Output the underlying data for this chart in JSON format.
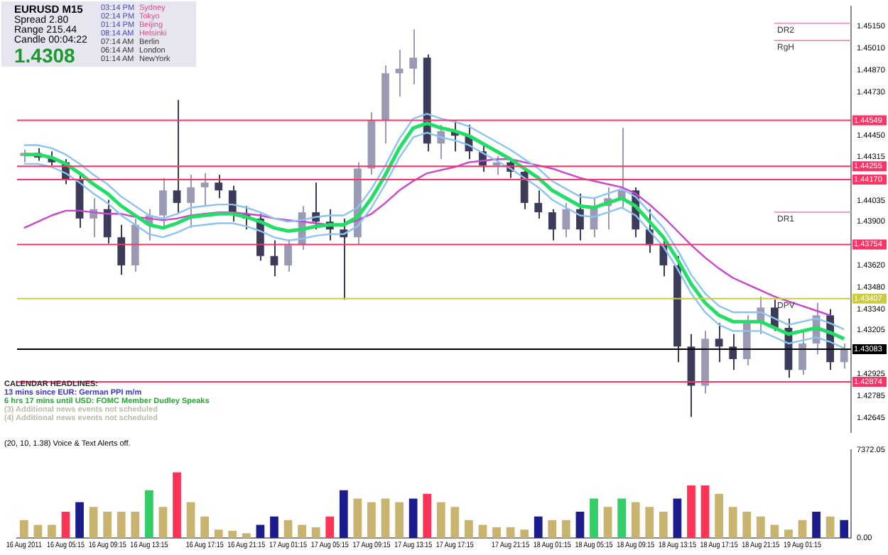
{
  "chart_data": [
    {
      "type": "candlestick",
      "colors": [
        "#9a9ab4",
        "#3c3c5a",
        "#3c3c5a",
        "#3c3c5a",
        "#3c3c5a",
        "#9a9ab4",
        "#3c3c5a",
        "#3c3c5a",
        "#9a9ab4",
        "#9a9ab4",
        "#9a9ab4",
        "#3c3c5a",
        "#9a9ab4",
        "#9a9ab4",
        "#3c3c5a",
        "#3c3c5a",
        "#3c3c5a",
        "#3c3c5a",
        "#3c3c5a",
        "#9a9ab4",
        "#9a9ab4",
        "#3c3c5a",
        "#3c3c5a",
        "#3c3c5a",
        "#9a9ab4",
        "#9a9ab4",
        "#9a9ab4",
        "#9a9ab4",
        "#9a9ab4",
        "#3c3c5a",
        "#9a9ab4",
        "#3c3c5a",
        "#3c3c5a",
        "#3c3c5a",
        "#9a9ab4",
        "#3c3c5a",
        "#3c3c5a",
        "#3c3c5a",
        "#3c3c5a",
        "#9a9ab4",
        "#3c3c5a",
        "#9a9ab4",
        "#9a9ab4",
        "#9a9ab4",
        "#3c3c5a",
        "#3c3c5a",
        "#3c3c5a",
        "#3c3c5a",
        "#3c3c5a",
        "#9a9ab4",
        "#3c3c5a",
        "#3c3c5a",
        "#9a9ab4",
        "#9a9ab4",
        "#3c3c5a",
        "#3c3c5a",
        "#9a9ab4",
        "#9a9ab4",
        "#3c3c5a",
        "#9a9ab4"
      ],
      "grid": false,
      "legend": false,
      "tick_labels": "y",
      "categories": [
        null,
        null,
        null,
        null,
        null,
        null,
        null,
        null,
        null,
        null,
        null,
        null,
        null,
        null,
        null,
        null,
        null,
        null,
        null,
        null,
        null,
        null,
        null,
        null,
        null,
        null,
        null,
        null,
        null,
        null,
        null,
        null,
        null,
        null,
        null,
        null,
        null,
        null,
        null,
        null,
        null,
        null,
        null,
        null,
        null,
        null,
        null,
        null,
        null,
        null,
        null,
        null,
        null,
        null,
        null,
        null,
        null,
        null,
        null,
        null
      ],
      "ohlc": [
        [
          1.4432,
          1.4436,
          1.4428,
          1.4434
        ],
        [
          1.4434,
          1.4437,
          1.4429,
          1.4431
        ],
        [
          1.4431,
          1.4435,
          1.4426,
          1.4428
        ],
        [
          1.4428,
          1.443,
          1.4414,
          1.4417
        ],
        [
          1.4417,
          1.442,
          1.4386,
          1.4392
        ],
        [
          1.4392,
          1.4405,
          1.438,
          1.4398
        ],
        [
          1.4398,
          1.4404,
          1.4376,
          1.438
        ],
        [
          1.438,
          1.4388,
          1.4356,
          1.4362
        ],
        [
          1.4362,
          1.4392,
          1.4358,
          1.4388
        ],
        [
          1.4388,
          1.4398,
          1.4378,
          1.4394
        ],
        [
          1.4394,
          1.4418,
          1.4385,
          1.441
        ],
        [
          1.441,
          1.4468,
          1.4395,
          1.4402
        ],
        [
          1.4402,
          1.442,
          1.4386,
          1.4412
        ],
        [
          1.4412,
          1.4421,
          1.44,
          1.4415
        ],
        [
          1.4415,
          1.442,
          1.4405,
          1.441
        ],
        [
          1.441,
          1.4413,
          1.439,
          1.4395
        ],
        [
          1.4395,
          1.44,
          1.4385,
          1.4392
        ],
        [
          1.4392,
          1.4395,
          1.4365,
          1.4368
        ],
        [
          1.4368,
          1.4378,
          1.4355,
          1.4362
        ],
        [
          1.4362,
          1.4378,
          1.4358,
          1.4375
        ],
        [
          1.4375,
          1.44,
          1.4372,
          1.4396
        ],
        [
          1.4396,
          1.4415,
          1.4385,
          1.439
        ],
        [
          1.439,
          1.4398,
          1.4378,
          1.4385
        ],
        [
          1.4385,
          1.4392,
          1.434,
          1.438
        ],
        [
          1.438,
          1.4428,
          1.4375,
          1.4424
        ],
        [
          1.4424,
          1.446,
          1.442,
          1.4455
        ],
        [
          1.4455,
          1.449,
          1.444,
          1.4485
        ],
        [
          1.4485,
          1.45,
          1.447,
          1.4488
        ],
        [
          1.4488,
          1.4513,
          1.4478,
          1.4495
        ],
        [
          1.4495,
          1.4497,
          1.4435,
          1.444
        ],
        [
          1.444,
          1.4452,
          1.443,
          1.4448
        ],
        [
          1.4448,
          1.4455,
          1.4435,
          1.4445
        ],
        [
          1.4445,
          1.4452,
          1.443,
          1.4435
        ],
        [
          1.4435,
          1.444,
          1.4422,
          1.4426
        ],
        [
          1.4426,
          1.4432,
          1.442,
          1.4428
        ],
        [
          1.4428,
          1.443,
          1.4418,
          1.4422
        ],
        [
          1.4422,
          1.4424,
          1.4398,
          1.4402
        ],
        [
          1.4402,
          1.441,
          1.4392,
          1.4396
        ],
        [
          1.4396,
          1.4398,
          1.4378,
          1.4385
        ],
        [
          1.4385,
          1.4402,
          1.438,
          1.4398
        ],
        [
          1.4398,
          1.4408,
          1.4378,
          1.4385
        ],
        [
          1.4385,
          1.4405,
          1.438,
          1.44
        ],
        [
          1.44,
          1.4412,
          1.4385,
          1.4405
        ],
        [
          1.4405,
          1.445,
          1.4398,
          1.441
        ],
        [
          1.441,
          1.4412,
          1.438,
          1.4385
        ],
        [
          1.4385,
          1.4398,
          1.437,
          1.4375
        ],
        [
          1.4375,
          1.438,
          1.4355,
          1.4362
        ],
        [
          1.4362,
          1.4368,
          1.43,
          1.431
        ],
        [
          1.431,
          1.4318,
          1.4265,
          1.4285
        ],
        [
          1.4285,
          1.432,
          1.428,
          1.4315
        ],
        [
          1.4315,
          1.4325,
          1.43,
          1.431
        ],
        [
          1.431,
          1.4318,
          1.4295,
          1.4302
        ],
        [
          1.4302,
          1.433,
          1.4298,
          1.4325
        ],
        [
          1.4325,
          1.4342,
          1.4318,
          1.4335
        ],
        [
          1.4335,
          1.434,
          1.432,
          1.4322
        ],
        [
          1.4322,
          1.4328,
          1.429,
          1.4295
        ],
        [
          1.4295,
          1.432,
          1.4292,
          1.4312
        ],
        [
          1.4312,
          1.4338,
          1.4305,
          1.433
        ],
        [
          1.433,
          1.4334,
          1.4295,
          1.43
        ],
        [
          1.43,
          1.4312,
          1.4296,
          1.4308
        ]
      ],
      "series": [
        {
          "type": "line",
          "color": "#22dd66",
          "values": [
            1.4433,
            1.4433,
            1.4431,
            1.4427,
            1.4421,
            1.4414,
            1.4408,
            1.44,
            1.4394,
            1.4388,
            1.4386,
            1.4389,
            1.4393,
            1.4394,
            1.4395,
            1.4395,
            1.4393,
            1.439,
            1.4386,
            1.4384,
            1.4385,
            1.4387,
            1.4388,
            1.4388,
            1.4393,
            1.4405,
            1.442,
            1.4437,
            1.445,
            1.4453,
            1.445,
            1.4448,
            1.4445,
            1.444,
            1.4435,
            1.443,
            1.4424,
            1.4418,
            1.441,
            1.4405,
            1.44,
            1.4399,
            1.4402,
            1.4405,
            1.44,
            1.439,
            1.438,
            1.4366,
            1.435,
            1.4338,
            1.433,
            1.4326,
            1.4326,
            1.4326,
            1.4322,
            1.4318,
            1.432,
            1.4322,
            1.4319,
            1.4315
          ]
        },
        {
          "type": "line",
          "color": "#8cc4f0",
          "values": [
            1.4439,
            1.4439,
            1.4437,
            1.4433,
            1.4427,
            1.442,
            1.4414,
            1.4406,
            1.44,
            1.4394,
            1.4392,
            1.4395,
            1.4399,
            1.44,
            1.4401,
            1.4401,
            1.4399,
            1.4396,
            1.4392,
            1.439,
            1.4391,
            1.4393,
            1.4394,
            1.4394,
            1.4399,
            1.4411,
            1.4426,
            1.4443,
            1.4456,
            1.4459,
            1.4456,
            1.4454,
            1.4451,
            1.4446,
            1.4441,
            1.4436,
            1.443,
            1.4424,
            1.4416,
            1.4411,
            1.4406,
            1.4405,
            1.4408,
            1.4411,
            1.4406,
            1.4396,
            1.4386,
            1.4372,
            1.4356,
            1.4344,
            1.4336,
            1.4332,
            1.4332,
            1.4332,
            1.4328,
            1.4324,
            1.4326,
            1.4328,
            1.4325,
            1.4321
          ]
        },
        {
          "type": "line",
          "color": "#8cc4f0",
          "values": [
            1.4427,
            1.4427,
            1.4425,
            1.4421,
            1.4415,
            1.4408,
            1.4402,
            1.4394,
            1.4388,
            1.4382,
            1.438,
            1.4383,
            1.4387,
            1.4388,
            1.4389,
            1.4389,
            1.4387,
            1.4384,
            1.438,
            1.4378,
            1.4379,
            1.4381,
            1.4382,
            1.4382,
            1.4387,
            1.4399,
            1.4414,
            1.4431,
            1.4444,
            1.4447,
            1.4444,
            1.4442,
            1.4439,
            1.4434,
            1.4429,
            1.4424,
            1.4418,
            1.4412,
            1.4404,
            1.4399,
            1.4394,
            1.4393,
            1.4396,
            1.4399,
            1.4394,
            1.4384,
            1.4374,
            1.436,
            1.4344,
            1.4332,
            1.4324,
            1.432,
            1.432,
            1.432,
            1.4316,
            1.4312,
            1.4314,
            1.4316,
            1.4313,
            1.4309
          ]
        },
        {
          "type": "line",
          "color": "#cc44cc",
          "values": [
            1.4386,
            1.439,
            1.4394,
            1.4397,
            1.4397,
            1.4396,
            1.4395,
            1.4395,
            1.4393,
            1.4392,
            1.4391,
            1.4392,
            1.4394,
            1.4395,
            1.4396,
            1.4396,
            1.4395,
            1.4394,
            1.4392,
            1.4391,
            1.439,
            1.4389,
            1.4388,
            1.4388,
            1.4391,
            1.4395,
            1.4402,
            1.441,
            1.4416,
            1.4421,
            1.4423,
            1.4425,
            1.4428,
            1.4429,
            1.443,
            1.443,
            1.4428,
            1.4426,
            1.4424,
            1.4421,
            1.4418,
            1.4416,
            1.4414,
            1.4412,
            1.4408,
            1.4401,
            1.4393,
            1.4384,
            1.4375,
            1.4367,
            1.436,
            1.4354,
            1.435,
            1.4346,
            1.4342,
            1.4339,
            1.4336,
            1.4333,
            1.433,
            null
          ]
        }
      ],
      "ylim": [
        1.4255,
        1.4528
      ],
      "yticks": [
        {
          "value": 1.4515,
          "label": "1.45150"
        },
        {
          "value": 1.4501,
          "label": "1.45010"
        },
        {
          "value": 1.4487,
          "label": "1.44870"
        },
        {
          "value": 1.4473,
          "label": "1.44730"
        },
        {
          "value": 1.4445,
          "label": "1.44450"
        },
        {
          "value": 1.44315,
          "label": "1.44315"
        },
        {
          "value": 1.44035,
          "label": "1.44035"
        },
        {
          "value": 1.439,
          "label": "1.43900"
        },
        {
          "value": 1.4362,
          "label": "1.43620"
        },
        {
          "value": 1.4348,
          "label": "1.43480"
        },
        {
          "value": 1.4334,
          "label": "1.43340"
        },
        {
          "value": 1.43205,
          "label": "1.43205"
        },
        {
          "value": 1.42925,
          "label": "1.42925"
        },
        {
          "value": 1.42785,
          "label": "1.42785"
        },
        {
          "value": 1.42645,
          "label": "1.42645"
        }
      ],
      "ref_lines": [
        {
          "axis": "y",
          "value": 1.44549,
          "label": "1.44549",
          "color": "#ff3366"
        },
        {
          "axis": "y",
          "value": 1.44255,
          "label": "1.44255",
          "color": "#ff3366"
        },
        {
          "axis": "y",
          "value": 1.4417,
          "label": "1.44170",
          "color": "#ff3366"
        },
        {
          "axis": "y",
          "value": 1.43754,
          "label": "1.43754",
          "color": "#ff3366"
        },
        {
          "axis": "y",
          "value": 1.43407,
          "label": "1.43407",
          "color": "#cccc44"
        },
        {
          "axis": "y",
          "value": 1.43083,
          "label": "1.43083",
          "color": "#000000"
        },
        {
          "axis": "y",
          "value": 1.42874,
          "label": "1.42874",
          "color": "#ff3366"
        },
        {
          "axis": "y",
          "value": 1.4517,
          "label": "DR2"
        },
        {
          "axis": "y",
          "value": 1.4506,
          "label": "RgH"
        },
        {
          "axis": "y",
          "value": 1.4396,
          "label": "DR1"
        }
      ],
      "annotations": [
        "EURUSD  M15",
        "Spread  2.80",
        "Range  215.44",
        "Candle  00:04:22",
        "1.4308",
        "03:14 PM",
        "02:14 PM",
        "01:14 PM",
        "08:14 AM",
        "07:14 AM",
        "06:14 AM",
        "01:14 AM",
        "Sydney",
        "Tokyo",
        "Beijing",
        "Helsinki",
        "Berlin",
        "London",
        "NewYork",
        "CALENDAR HEADLINES:",
        "13 mins since EUR: German PPI m/m",
        "6 hrs 17 mins until USD: FOMC Member Dudley Speaks",
        "(3)  Additional news events not scheduled",
        "(4)  Additional news events not scheduled",
        {
          "text": "DPV",
          "y": 1.43407
        }
      ]
    },
    {
      "type": "bar",
      "grid": false,
      "legend": false,
      "categories": [
        "16 Aug 2011",
        null,
        null,
        "16 Aug 05:15",
        null,
        null,
        "16 Aug 09:15",
        null,
        null,
        "16 Aug 13:15",
        null,
        null,
        null,
        "16 Aug 17:15",
        null,
        null,
        "16 Aug 21:15",
        null,
        null,
        "17 Aug 01:15",
        null,
        null,
        "17 Aug 05:15",
        null,
        null,
        "17 Aug 09:15",
        null,
        null,
        "17 Aug 13:15",
        null,
        null,
        "17 Aug 17:15",
        null,
        null,
        null,
        "17 Aug 21:15",
        null,
        null,
        "18 Aug 01:15",
        null,
        null,
        "18 Aug 05:15",
        null,
        null,
        "18 Aug 09:15",
        null,
        null,
        "18 Aug 13:15",
        null,
        null,
        "18 Aug 17:15",
        null,
        null,
        "18 Aug 21:15",
        null,
        null,
        "19 Aug 01:15",
        null,
        null,
        null
      ],
      "values": [
        1500,
        1100,
        1100,
        2200,
        3000,
        2600,
        2200,
        2200,
        2200,
        4000,
        2600,
        5500,
        3000,
        1800,
        700,
        600,
        400,
        1100,
        1800,
        1500,
        1100,
        900,
        1800,
        4000,
        3300,
        3000,
        3300,
        3000,
        3300,
        3700,
        3000,
        2600,
        1500,
        1100,
        900,
        900,
        700,
        1800,
        1500,
        1500,
        2200,
        3300,
        2600,
        3300,
        3000,
        2600,
        2200,
        3300,
        4400,
        4400,
        3700,
        2600,
        2200,
        1800,
        1100,
        700,
        1500,
        2200,
        1800,
        1500
      ],
      "colors": [
        "#c8b46e",
        "#c8b46e",
        "#c8b46e",
        "#ff3355",
        "#1c1c8c",
        "#c8b46e",
        "#c8b46e",
        "#c8b46e",
        "#c8b46e",
        "#33cc66",
        "#c8b46e",
        "#ff3355",
        "#c8b46e",
        "#c8b46e",
        "#c8b46e",
        "#c8b46e",
        "#c8b46e",
        "#1c1c8c",
        "#1c1c8c",
        "#c8b46e",
        "#c8b46e",
        "#c8b46e",
        "#ff3355",
        "#1c1c8c",
        "#c8b46e",
        "#c8b46e",
        "#c8b46e",
        "#c8b46e",
        "#1c1c8c",
        "#ff3355",
        "#c8b46e",
        "#c8b46e",
        "#c8b46e",
        "#c8b46e",
        "#c8b46e",
        "#c8b46e",
        "#c8b46e",
        "#1c1c8c",
        "#c8b46e",
        "#c8b46e",
        "#1c1c8c",
        "#33cc66",
        "#c8b46e",
        "#33cc66",
        "#c8b46e",
        "#c8b46e",
        "#c8b46e",
        "#1c1c8c",
        "#ff3355",
        "#ff3355",
        "#c8b46e",
        "#c8b46e",
        "#c8b46e",
        "#c8b46e",
        "#c8b46e",
        "#c8b46e",
        "#c8b46e",
        "#1c1c8c",
        "#c8b46e",
        "#1c1c8c"
      ],
      "ylim": [
        0,
        7372.05
      ],
      "yticks": [
        {
          "value": 0,
          "label": "0.00"
        },
        {
          "value": 7372.05,
          "label": "7372.05"
        }
      ],
      "annotations": [
        "(20, 10, 1.38)  Voice & Text Alerts off."
      ]
    }
  ]
}
